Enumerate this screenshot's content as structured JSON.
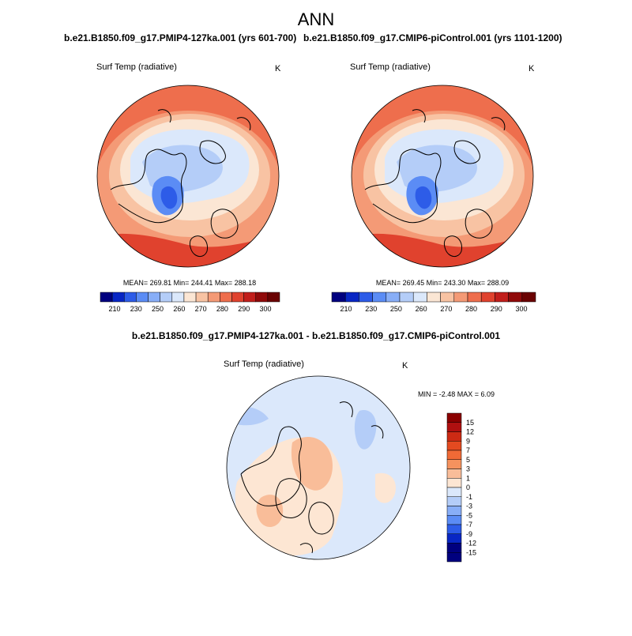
{
  "page": {
    "title": "ANN",
    "variable": "Surf Temp (radiative)",
    "units": "K"
  },
  "panels": [
    {
      "case_title": "b.e21.B1850.f09_g17.PMIP4-127ka.001 (yrs 601-700)",
      "stats": "MEAN= 269.81  Min= 244.41  Max= 288.18"
    },
    {
      "case_title": "b.e21.B1850.f09_g17.CMIP6-piControl.001 (yrs 1101-1200)",
      "stats": "MEAN= 269.45  Min= 243.30  Max= 288.09"
    }
  ],
  "diff_panel": {
    "case_title": "b.e21.B1850.f09_g17.PMIP4-127ka.001 - b.e21.B1850.f09_g17.CMIP6-piControl.001",
    "stats": "MIN =  -2.48 MAX =   6.09"
  },
  "chart_data": [
    {
      "type": "heatmap",
      "projection": "north polar stereographic",
      "title": "Surf Temp (radiative)",
      "units": "K",
      "stats": {
        "mean": 269.81,
        "min": 244.41,
        "max": 288.18
      },
      "colorbar": {
        "levels": [
          210,
          230,
          250,
          260,
          270,
          280,
          290,
          300
        ],
        "colors": [
          "#00007f",
          "#0826c4",
          "#2d5ce8",
          "#5b8cf5",
          "#88aef7",
          "#b4cdf8",
          "#dbe8fb",
          "#fbe6d4",
          "#f8c3a3",
          "#f49a76",
          "#ee6e4d",
          "#e0422e",
          "#c11e1b",
          "#900a0a",
          "#6a0202"
        ]
      }
    },
    {
      "type": "heatmap",
      "projection": "north polar stereographic",
      "title": "Surf Temp (radiative)",
      "units": "K",
      "stats": {
        "mean": 269.45,
        "min": 243.3,
        "max": 288.09
      },
      "colorbar": {
        "levels": [
          210,
          230,
          250,
          260,
          270,
          280,
          290,
          300
        ],
        "colors": [
          "#00007f",
          "#0826c4",
          "#2d5ce8",
          "#5b8cf5",
          "#88aef7",
          "#b4cdf8",
          "#dbe8fb",
          "#fbe6d4",
          "#f8c3a3",
          "#f49a76",
          "#ee6e4d",
          "#e0422e",
          "#c11e1b",
          "#900a0a",
          "#6a0202"
        ]
      }
    },
    {
      "type": "heatmap",
      "projection": "north polar stereographic",
      "title": "Surf Temp (radiative)",
      "units": "K",
      "stats": {
        "min": -2.48,
        "max": 6.09
      },
      "colorbar": {
        "orientation": "vertical",
        "labels": [
          "15",
          "12",
          "9",
          "7",
          "5",
          "3",
          "1",
          "0",
          "-1",
          "-3",
          "-5",
          "-7",
          "-9",
          "-12",
          "-15"
        ],
        "colors": [
          "#8b0000",
          "#b01010",
          "#cc2a14",
          "#e44a20",
          "#f06a36",
          "#f5925e",
          "#f9bd99",
          "#fde6d3",
          "#dbe8fb",
          "#b4cdf8",
          "#88aef7",
          "#5b8cf5",
          "#2d5ce8",
          "#0826c4",
          "#00007f",
          "#00007f"
        ]
      }
    }
  ]
}
